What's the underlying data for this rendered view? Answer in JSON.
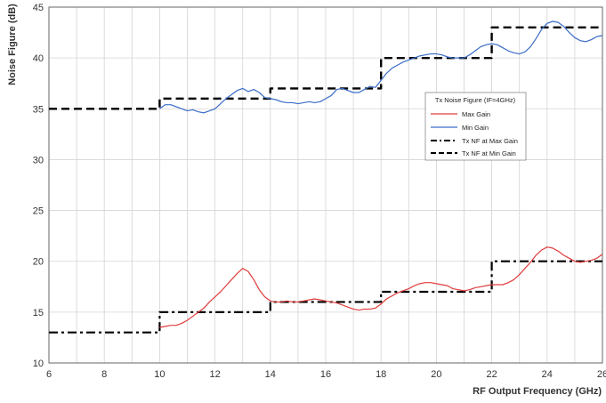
{
  "chart_data": {
    "type": "line",
    "xlabel": "RF Output Frequency (GHz)",
    "ylabel": "Noise Figure (dB)",
    "xlim": [
      6,
      26
    ],
    "ylim": [
      10,
      45
    ],
    "x_ticks": [
      "6",
      "8",
      "10",
      "12",
      "14",
      "16",
      "18",
      "20",
      "22",
      "24",
      "26"
    ],
    "y_ticks": [
      "10",
      "15",
      "20",
      "25",
      "30",
      "35",
      "40",
      "45"
    ],
    "grid": true,
    "legend": {
      "title": "Tx Noise Figure (IF=4GHz)",
      "placement": "right"
    },
    "colors": {
      "max_gain": "#e03c3c",
      "min_gain": "#3b6cc8",
      "step": "#000000",
      "grid": "#d4d4d4"
    },
    "series": [
      {
        "name": "Max Gain",
        "style": "solid-red",
        "x": [
          10.0,
          10.2,
          10.4,
          10.6,
          10.8,
          11.0,
          11.2,
          11.4,
          11.6,
          11.8,
          12.0,
          12.2,
          12.4,
          12.6,
          12.8,
          13.0,
          13.2,
          13.4,
          13.6,
          13.8,
          14.0,
          14.2,
          14.4,
          14.6,
          14.8,
          15.0,
          15.2,
          15.4,
          15.6,
          15.8,
          16.0,
          16.2,
          16.4,
          16.6,
          16.8,
          17.0,
          17.2,
          17.4,
          17.6,
          17.8,
          18.0,
          18.2,
          18.4,
          18.6,
          18.8,
          19.0,
          19.2,
          19.4,
          19.6,
          19.8,
          20.0,
          20.2,
          20.4,
          20.6,
          20.8,
          21.0,
          21.2,
          21.4,
          21.6,
          21.8,
          22.0,
          22.2,
          22.4,
          22.6,
          22.8,
          23.0,
          23.2,
          23.4,
          23.6,
          23.8,
          24.0,
          24.2,
          24.4,
          24.6,
          24.8,
          25.0,
          25.2,
          25.4,
          25.6,
          25.8,
          26.0
        ],
        "values": [
          13.5,
          13.6,
          13.7,
          13.7,
          13.9,
          14.2,
          14.6,
          15.0,
          15.4,
          16.0,
          16.5,
          17.0,
          17.6,
          18.2,
          18.8,
          19.3,
          19.0,
          18.2,
          17.2,
          16.5,
          16.1,
          16.0,
          16.0,
          16.1,
          16.0,
          16.0,
          16.1,
          16.2,
          16.3,
          16.2,
          16.1,
          16.0,
          15.9,
          15.7,
          15.5,
          15.3,
          15.2,
          15.3,
          15.3,
          15.4,
          15.8,
          16.3,
          16.6,
          16.9,
          17.1,
          17.3,
          17.6,
          17.8,
          17.9,
          17.9,
          17.8,
          17.7,
          17.6,
          17.3,
          17.2,
          17.1,
          17.2,
          17.4,
          17.5,
          17.6,
          17.7,
          17.7,
          17.7,
          17.9,
          18.2,
          18.7,
          19.3,
          19.9,
          20.6,
          21.1,
          21.4,
          21.3,
          21.0,
          20.6,
          20.3,
          20.0,
          19.9,
          20.0,
          20.1,
          20.3,
          20.7
        ]
      },
      {
        "name": "Min Gain",
        "style": "solid-blue",
        "x": [
          10.0,
          10.2,
          10.4,
          10.6,
          10.8,
          11.0,
          11.2,
          11.4,
          11.6,
          11.8,
          12.0,
          12.2,
          12.4,
          12.6,
          12.8,
          13.0,
          13.2,
          13.4,
          13.6,
          13.8,
          14.0,
          14.2,
          14.4,
          14.6,
          14.8,
          15.0,
          15.2,
          15.4,
          15.6,
          15.8,
          16.0,
          16.2,
          16.4,
          16.6,
          16.8,
          17.0,
          17.2,
          17.4,
          17.6,
          17.8,
          18.0,
          18.2,
          18.4,
          18.6,
          18.8,
          19.0,
          19.2,
          19.4,
          19.6,
          19.8,
          20.0,
          20.2,
          20.4,
          20.6,
          20.8,
          21.0,
          21.2,
          21.4,
          21.6,
          21.8,
          22.0,
          22.2,
          22.4,
          22.6,
          22.8,
          23.0,
          23.2,
          23.4,
          23.6,
          23.8,
          24.0,
          24.2,
          24.4,
          24.6,
          24.8,
          25.0,
          25.2,
          25.4,
          25.6,
          25.8,
          26.0
        ],
        "values": [
          35.0,
          35.4,
          35.4,
          35.2,
          35.0,
          34.8,
          34.9,
          34.7,
          34.6,
          34.8,
          35.0,
          35.5,
          36.0,
          36.4,
          36.8,
          37.0,
          36.7,
          36.9,
          36.6,
          36.1,
          36.0,
          35.9,
          35.7,
          35.6,
          35.6,
          35.5,
          35.6,
          35.7,
          35.6,
          35.7,
          36.0,
          36.3,
          36.9,
          37.0,
          36.8,
          36.6,
          36.6,
          36.9,
          37.2,
          37.1,
          37.8,
          38.5,
          39.0,
          39.3,
          39.6,
          39.8,
          40.0,
          40.2,
          40.3,
          40.4,
          40.4,
          40.3,
          40.1,
          40.0,
          40.0,
          40.0,
          40.3,
          40.7,
          41.1,
          41.3,
          41.4,
          41.3,
          41.0,
          40.7,
          40.5,
          40.4,
          40.6,
          41.1,
          41.9,
          42.8,
          43.4,
          43.6,
          43.5,
          43.1,
          42.5,
          42.0,
          41.7,
          41.6,
          41.8,
          42.1,
          42.2
        ]
      },
      {
        "name": "Tx NF at Max Gain",
        "style": "dash-dot-black",
        "x": [
          6,
          10,
          10,
          14,
          14,
          18,
          18,
          22,
          22,
          26
        ],
        "values": [
          13,
          13,
          15,
          15,
          16,
          16,
          17,
          17,
          20,
          20
        ]
      },
      {
        "name": "Tx NF at Min Gain",
        "style": "dashed-black",
        "x": [
          6,
          10,
          10,
          14,
          14,
          18,
          18,
          22,
          22,
          26
        ],
        "values": [
          35,
          35,
          36,
          36,
          37,
          37,
          40,
          40,
          43,
          43
        ]
      }
    ]
  }
}
